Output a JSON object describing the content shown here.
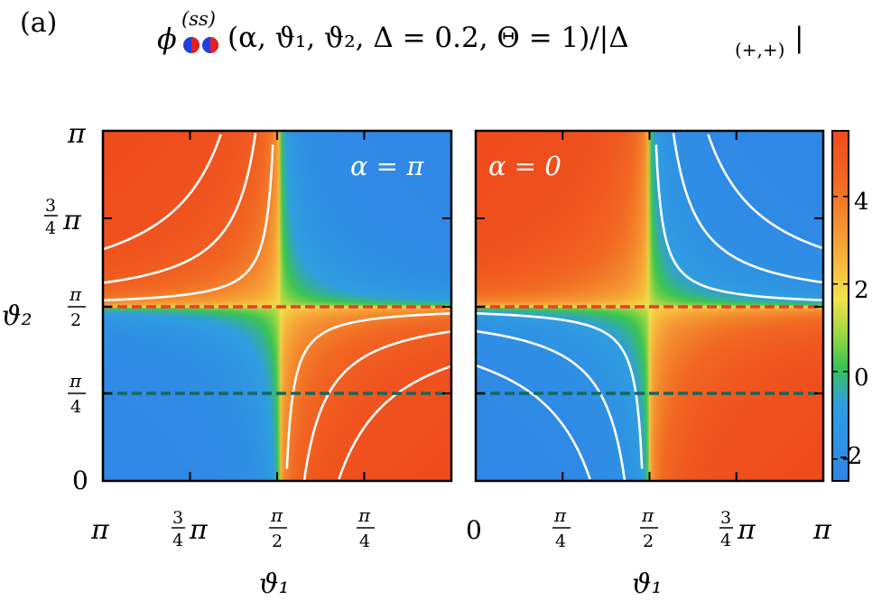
{
  "panel_label": "(a)",
  "title": {
    "phi": "ϕ",
    "superscript": "(ss)",
    "args": "(α, ϑ₁, ϑ₂, Δ = 0.2, Θ = 1)/|Δ",
    "subscript": "(+,+)",
    "close": "|"
  },
  "colors": {
    "low": "#2f86e6",
    "mid_green": "#3cc451",
    "mid_yellow": "#f3e34a",
    "high": "#ef4a1c",
    "contour": "#ffffff",
    "line_upper": "#ee3a2a",
    "line_lower": "#16675f"
  },
  "chart_data": [
    {
      "type": "heatmap",
      "annotation": "α = π",
      "xlabel": "ϑ₁",
      "ylabel": "ϑ₂",
      "x_tick_labels": [
        "π",
        "3/4 π",
        "π/2",
        "π/4"
      ],
      "y_tick_labels": [
        "0",
        "π/4",
        "π/2",
        "3/4 π",
        "π"
      ],
      "dashed_lines_y": [
        "π/2",
        "π/4"
      ]
    },
    {
      "type": "heatmap",
      "annotation": "α = 0",
      "xlabel": "ϑ₁",
      "x_tick_labels": [
        "0",
        "π/4",
        "π/2",
        "3/4 π",
        "π"
      ],
      "dashed_lines_y": [
        "π/2",
        "π/4"
      ]
    }
  ],
  "colorbar": {
    "tick_labels": [
      "4",
      "2",
      "0",
      "-2"
    ],
    "range": [
      -2.5,
      5.5
    ]
  }
}
